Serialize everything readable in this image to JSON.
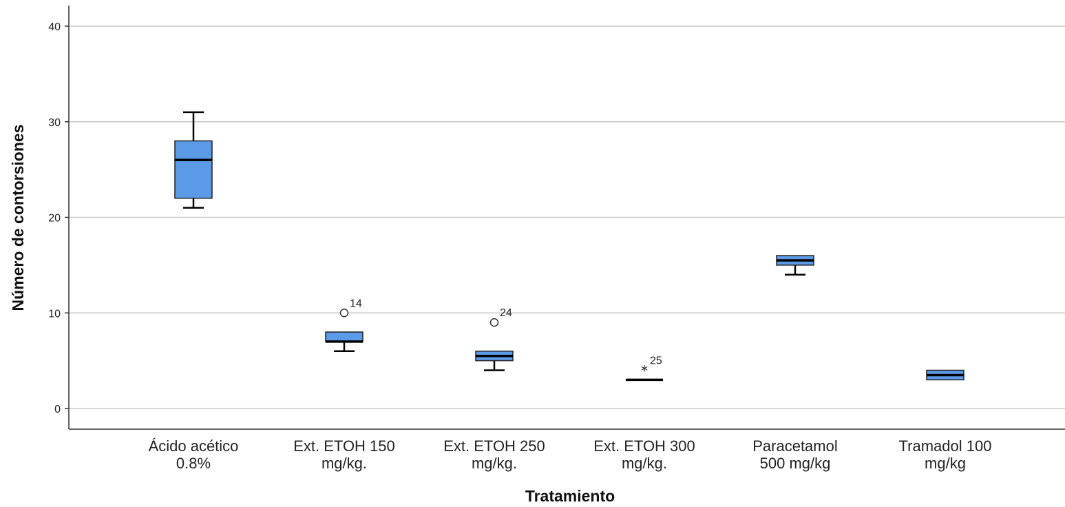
{
  "chart_data": {
    "type": "boxplot",
    "xlabel": "Tratamiento",
    "ylabel": "Número de contorsiones",
    "ylim": [
      -2,
      42
    ],
    "yticks": [
      0,
      10,
      20,
      30,
      40
    ],
    "grid": true,
    "box_color": "#5b9ae6",
    "categories": [
      {
        "lines": [
          "Ácido acético",
          "0.8%"
        ],
        "min": 21,
        "q1": 22,
        "median": 26,
        "q3": 28,
        "max": 31,
        "outliers": []
      },
      {
        "lines": [
          "Ext. ETOH 150",
          "mg/kg."
        ],
        "min": 6,
        "q1": 7,
        "median": 7,
        "q3": 8,
        "max": 8,
        "outliers": [
          {
            "value": 10,
            "marker": "circle",
            "label": "14"
          }
        ]
      },
      {
        "lines": [
          "Ext. ETOH 250",
          "mg/kg."
        ],
        "min": 4,
        "q1": 5,
        "median": 5.5,
        "q3": 6,
        "max": 6,
        "outliers": [
          {
            "value": 9,
            "marker": "circle",
            "label": "24"
          }
        ]
      },
      {
        "lines": [
          "Ext. ETOH 300",
          "mg/kg."
        ],
        "min": 3,
        "q1": 3,
        "median": 3,
        "q3": 3,
        "max": 3,
        "outliers": [
          {
            "value": 4,
            "marker": "star",
            "label": "25"
          }
        ]
      },
      {
        "lines": [
          "Paracetamol",
          "500 mg/kg"
        ],
        "min": 14,
        "q1": 15,
        "median": 15.5,
        "q3": 16,
        "max": 16,
        "outliers": []
      },
      {
        "lines": [
          "Tramadol 100",
          "mg/kg"
        ],
        "min": 3,
        "q1": 3,
        "median": 3.5,
        "q3": 4,
        "max": 4,
        "outliers": []
      }
    ]
  }
}
